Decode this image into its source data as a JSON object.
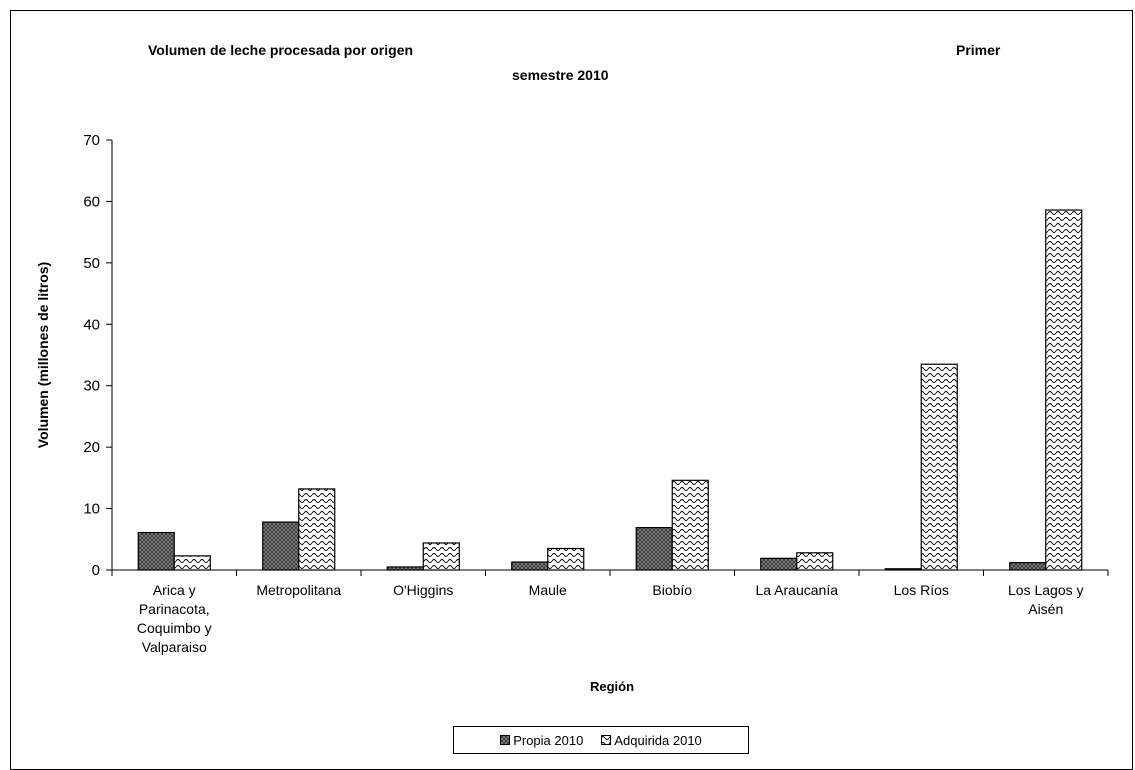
{
  "chart_data": {
    "type": "bar",
    "title_line1": "Volumen de leche procesada por origen",
    "title_right": "Primer",
    "title_line2": "semestre 2010",
    "xlabel": "Región",
    "ylabel": "Volumen (millones de litros)",
    "ylim": [
      0,
      70
    ],
    "yticks": [
      0,
      10,
      20,
      30,
      40,
      50,
      60,
      70
    ],
    "grid": false,
    "legend_position": "bottom",
    "categories": [
      [
        "Arica y",
        "Parinacota,",
        "Coquimbo y",
        "Valparaiso"
      ],
      [
        "Metropolitana"
      ],
      [
        "O'Higgins"
      ],
      [
        "Maule"
      ],
      [
        "Biobío"
      ],
      [
        "La Araucanía"
      ],
      [
        "Los Ríos"
      ],
      [
        "Los Lagos y",
        "Aisén"
      ]
    ],
    "series": [
      {
        "name": "Propia 2010",
        "pattern": "crosshatch",
        "color": "#808080",
        "values": [
          6.1,
          7.8,
          0.5,
          1.3,
          6.9,
          1.9,
          0.2,
          1.2
        ]
      },
      {
        "name": "Adquirida 2010",
        "pattern": "wave",
        "color": "#ffffff",
        "values": [
          2.3,
          13.2,
          4.4,
          3.5,
          14.6,
          2.8,
          33.5,
          58.6
        ]
      }
    ]
  }
}
